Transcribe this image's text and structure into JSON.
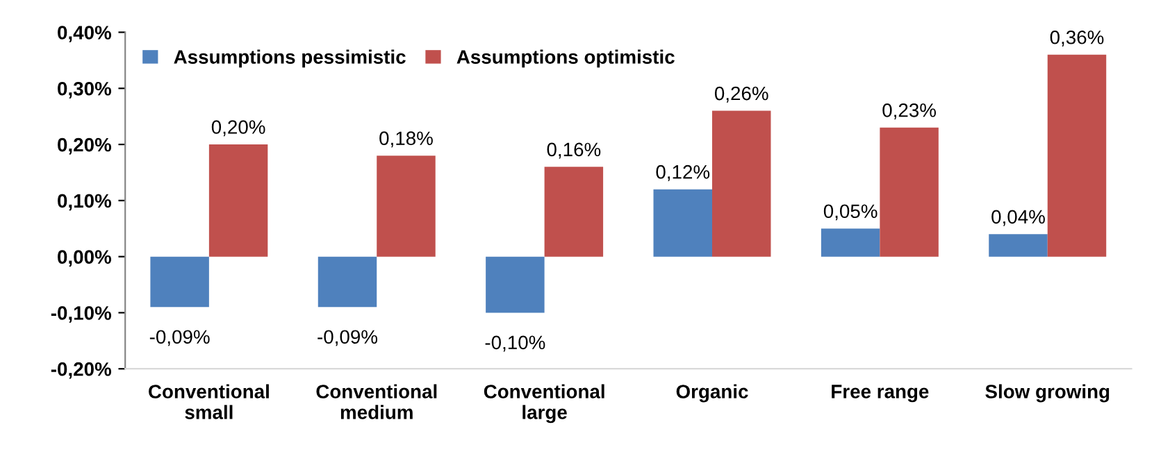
{
  "chart_data": {
    "type": "bar",
    "categories": [
      "Conventional\nsmall",
      "Conventional\nmedium",
      "Conventional\nlarge",
      "Organic",
      "Free range",
      "Slow growing"
    ],
    "series": [
      {
        "name": "Assumptions pessimistic",
        "color": "#4f81bd",
        "values": [
          -0.09,
          -0.09,
          -0.1,
          0.12,
          0.05,
          0.04
        ],
        "value_labels": [
          "-0,09%",
          "-0,09%",
          "-0,10%",
          "0,12%",
          "0,05%",
          "0,04%"
        ]
      },
      {
        "name": "Assumptions optimistic",
        "color": "#c0504d",
        "values": [
          0.2,
          0.18,
          0.16,
          0.26,
          0.23,
          0.36
        ],
        "value_labels": [
          "0,20%",
          "0,18%",
          "0,16%",
          "0,26%",
          "0,23%",
          "0,36%"
        ]
      }
    ],
    "ylim": [
      -0.2,
      0.4
    ],
    "yticks": [
      {
        "value": -0.2,
        "label": "-0,20%"
      },
      {
        "value": -0.1,
        "label": "-0,10%"
      },
      {
        "value": 0,
        "label": "0,00%"
      },
      {
        "value": 0.1,
        "label": "0,10%"
      },
      {
        "value": 0.2,
        "label": "0,20%"
      },
      {
        "value": 0.3,
        "label": "0,30%"
      },
      {
        "value": 0.4,
        "label": "0,40%"
      }
    ],
    "legend": "top left",
    "grid": false
  }
}
